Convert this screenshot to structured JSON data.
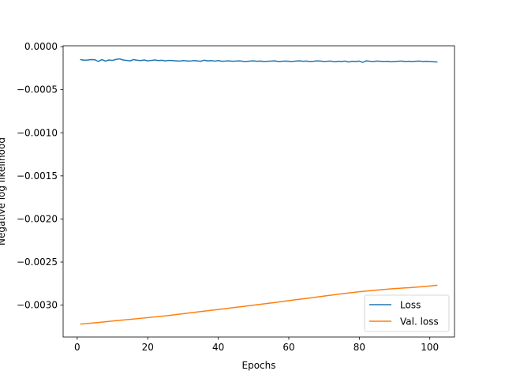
{
  "chart_data": {
    "type": "line",
    "title": "",
    "xlabel": "Epochs",
    "ylabel": "Negative log likelihood",
    "xlim": [
      -4,
      107
    ],
    "ylim": [
      -0.00337,
      1e-05
    ],
    "xticks": [
      0,
      20,
      40,
      60,
      80,
      100
    ],
    "xtick_labels": [
      "0",
      "20",
      "40",
      "60",
      "80",
      "100"
    ],
    "yticks": [
      0.0,
      -0.0005,
      -0.001,
      -0.0015,
      -0.002,
      -0.0025,
      -0.003
    ],
    "ytick_labels": [
      "0.0000",
      "−0.0005",
      "−0.0010",
      "−0.0015",
      "−0.0020",
      "−0.0025",
      "−0.0030"
    ],
    "grid": false,
    "legend_position": "lower-right",
    "series": [
      {
        "name": "Loss",
        "color": "#1f77b4",
        "x": [
          1,
          2,
          3,
          4,
          5,
          6,
          7,
          8,
          9,
          10,
          11,
          12,
          13,
          14,
          15,
          16,
          17,
          18,
          19,
          20,
          21,
          22,
          23,
          24,
          25,
          26,
          27,
          28,
          29,
          30,
          31,
          32,
          33,
          34,
          35,
          36,
          37,
          38,
          39,
          40,
          41,
          42,
          43,
          44,
          45,
          46,
          47,
          48,
          49,
          50,
          51,
          52,
          53,
          54,
          55,
          56,
          57,
          58,
          59,
          60,
          61,
          62,
          63,
          64,
          65,
          66,
          67,
          68,
          69,
          70,
          71,
          72,
          73,
          74,
          75,
          76,
          77,
          78,
          79,
          80,
          81,
          82,
          83,
          84,
          85,
          86,
          87,
          88,
          89,
          90,
          91,
          92,
          93,
          94,
          95,
          96,
          97,
          98,
          99,
          100,
          101,
          102
        ],
        "values": [
          -0.00015,
          -0.000158,
          -0.000155,
          -0.00015,
          -0.000152,
          -0.000172,
          -0.00015,
          -0.000168,
          -0.000155,
          -0.00016,
          -0.000148,
          -0.000142,
          -0.000155,
          -0.00016,
          -0.000165,
          -0.00015,
          -0.000158,
          -0.000162,
          -0.000155,
          -0.000165,
          -0.00016,
          -0.000155,
          -0.000162,
          -0.000158,
          -0.000165,
          -0.00016,
          -0.000162,
          -0.000165,
          -0.000168,
          -0.000162,
          -0.000165,
          -0.000168,
          -0.000162,
          -0.000165,
          -0.00017,
          -0.000158,
          -0.000165,
          -0.000162,
          -0.000168,
          -0.000162,
          -0.00017,
          -0.000168,
          -0.000165,
          -0.00017,
          -0.000168,
          -0.000165,
          -0.00017,
          -0.000172,
          -0.000168,
          -0.000165,
          -0.00017,
          -0.000168,
          -0.000172,
          -0.00017,
          -0.000168,
          -0.000165,
          -0.000172,
          -0.00017,
          -0.000168,
          -0.00017,
          -0.000172,
          -0.000168,
          -0.000165,
          -0.00017,
          -0.000168,
          -0.000172,
          -0.00017,
          -0.000165,
          -0.000168,
          -0.000172,
          -0.00017,
          -0.000168,
          -0.000175,
          -0.00017,
          -0.000172,
          -0.000168,
          -0.000178,
          -0.00017,
          -0.000172,
          -0.000168,
          -0.000182,
          -0.000165,
          -0.00017,
          -0.000172,
          -0.000168,
          -0.00017,
          -0.000172,
          -0.00017,
          -0.000175,
          -0.000172,
          -0.00017,
          -0.000168,
          -0.000172,
          -0.00017,
          -0.000172,
          -0.00017,
          -0.000168,
          -0.000172,
          -0.00017,
          -0.000172,
          -0.000175,
          -0.000178
        ]
      },
      {
        "name": "Val. loss",
        "color": "#ff7f0e",
        "x": [
          1,
          5,
          10,
          15,
          20,
          25,
          30,
          35,
          40,
          45,
          50,
          55,
          60,
          65,
          70,
          75,
          80,
          85,
          90,
          95,
          100,
          102
        ],
        "values": [
          -0.00322,
          -0.003205,
          -0.003185,
          -0.003165,
          -0.003145,
          -0.003125,
          -0.0031,
          -0.003075,
          -0.00305,
          -0.003025,
          -0.003,
          -0.002975,
          -0.002948,
          -0.002922,
          -0.002895,
          -0.002868,
          -0.002845,
          -0.002825,
          -0.002808,
          -0.002795,
          -0.002778,
          -0.00277
        ]
      }
    ]
  }
}
